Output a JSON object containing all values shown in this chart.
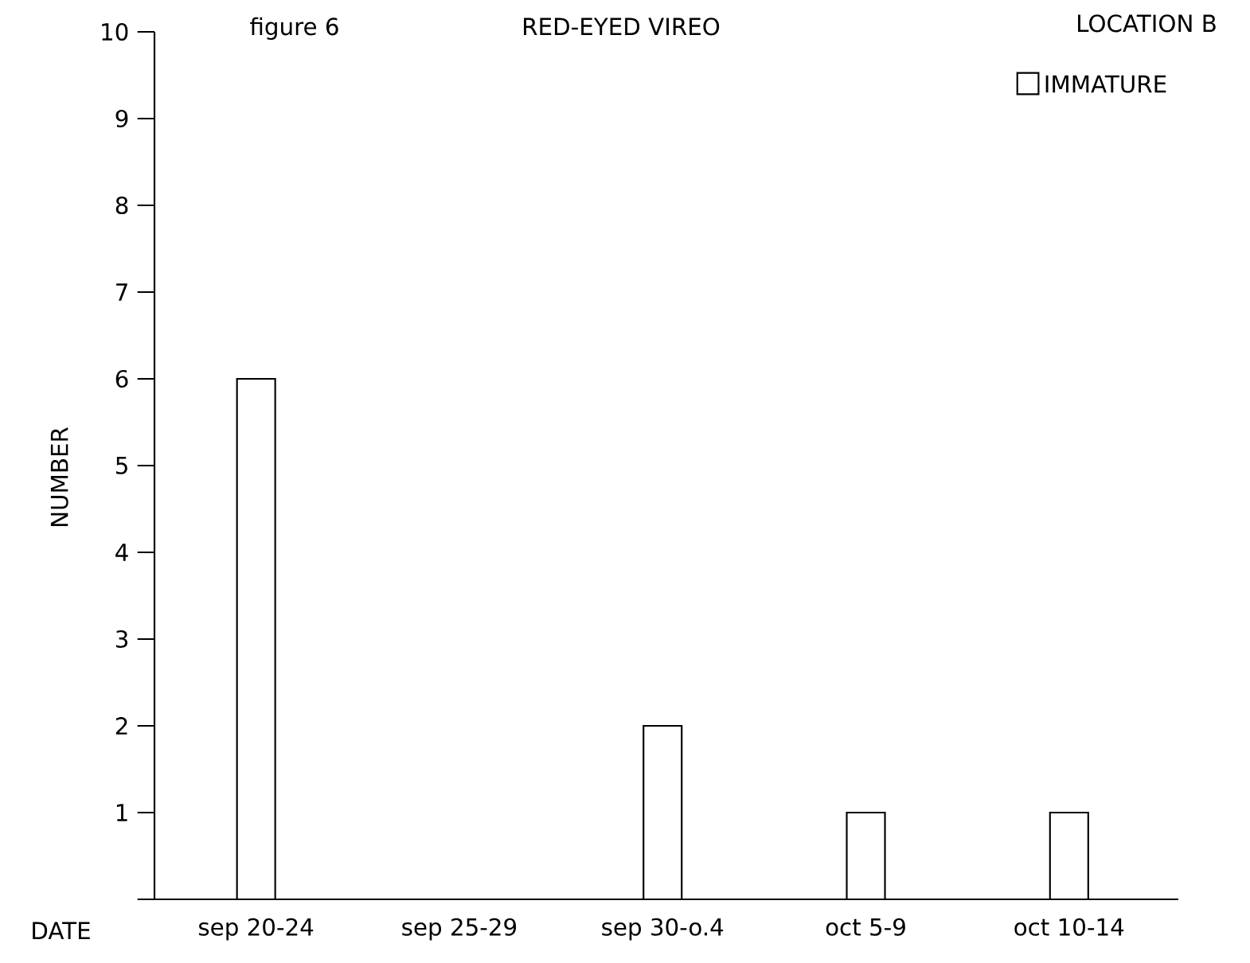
{
  "chart_data": {
    "type": "bar",
    "title": "RED-EYED VIREO",
    "annotations": [
      "figure 6",
      "LOCATION B"
    ],
    "xlabel": "DATE",
    "ylabel": "NUMBER",
    "categories": [
      "sep 20-24",
      "sep 25-29",
      "sep 30-o.4",
      "oct  5-9",
      "oct 10-14"
    ],
    "series": [
      {
        "name": "IMMATURE",
        "color": "#ffffff",
        "values": [
          6,
          0,
          2,
          1,
          1
        ]
      }
    ],
    "ylim": [
      0,
      10
    ],
    "yticks": [
      {
        "value": 0,
        "label": null
      },
      1,
      2,
      3,
      4,
      5,
      6,
      7,
      8,
      9,
      10
    ],
    "grid": false,
    "legend": "top right"
  }
}
